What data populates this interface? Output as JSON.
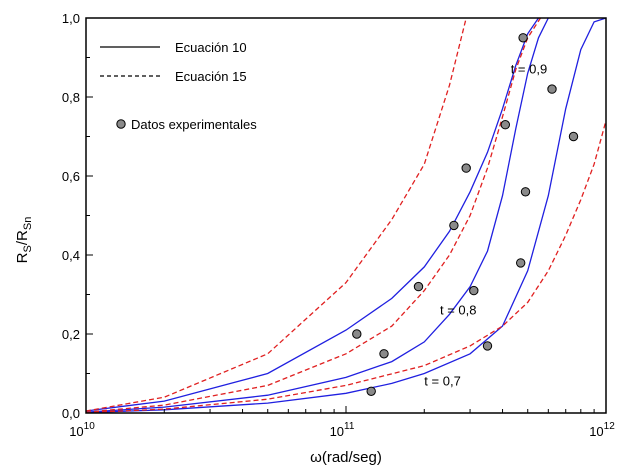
{
  "chart_data": {
    "type": "line",
    "title": "",
    "xlabel": "ω(rad/seg)",
    "ylabel": {
      "base": "R",
      "sub1": "S",
      "mid": "/R",
      "sub2": "Sn"
    },
    "x_scale": "log",
    "xlim": [
      10000000000,
      1000000000000
    ],
    "ylim": [
      0,
      1
    ],
    "grid": false,
    "legend_position": "top-left",
    "x_ticks": [
      {
        "value": 10000000000,
        "base": "10",
        "exp": "10"
      },
      {
        "value": 100000000000,
        "base": "10",
        "exp": "11"
      },
      {
        "value": 1000000000000,
        "base": "10",
        "exp": "12"
      }
    ],
    "y_ticks": [
      {
        "value": 0,
        "label": "0,0"
      },
      {
        "value": 0.2,
        "label": "0,2"
      },
      {
        "value": 0.4,
        "label": "0,4"
      },
      {
        "value": 0.6,
        "label": "0,6"
      },
      {
        "value": 0.8,
        "label": "0,8"
      },
      {
        "value": 1.0,
        "label": "1,0"
      }
    ],
    "legend": [
      {
        "label": "Ecuación 10",
        "style": "solid",
        "color": "#000000"
      },
      {
        "label": "Ecuación 15",
        "style": "dashed",
        "color": "#000000"
      },
      {
        "label": "Datos experimentales",
        "style": "marker",
        "color": "#808080"
      }
    ],
    "curve_labels": [
      {
        "text": "t = 0,9",
        "x": 430000000000,
        "y": 0.86
      },
      {
        "text": "t = 0,8",
        "x": 230000000000,
        "y": 0.25
      },
      {
        "text": "t = 0,7",
        "x": 200000000000,
        "y": 0.07
      }
    ],
    "series": [
      {
        "name": "",
        "group": "t = 0,9",
        "style": "solid",
        "color": "#2020e0",
        "points": [
          [
            10000000000,
            0.005
          ],
          [
            20000000000,
            0.03
          ],
          [
            50000000000,
            0.1
          ],
          [
            100000000000,
            0.21
          ],
          [
            150000000000,
            0.29
          ],
          [
            200000000000,
            0.37
          ],
          [
            250000000000,
            0.46
          ],
          [
            300000000000,
            0.56
          ],
          [
            350000000000,
            0.66
          ],
          [
            400000000000,
            0.77
          ],
          [
            450000000000,
            0.88
          ],
          [
            500000000000,
            0.96
          ],
          [
            550000000000,
            1.0
          ]
        ]
      },
      {
        "name": "",
        "group": "t = 0,9",
        "style": "dashed",
        "color": "#e02020",
        "points": [
          [
            10000000000,
            0.005
          ],
          [
            20000000000,
            0.04
          ],
          [
            50000000000,
            0.15
          ],
          [
            100000000000,
            0.33
          ],
          [
            150000000000,
            0.49
          ],
          [
            200000000000,
            0.63
          ],
          [
            250000000000,
            0.83
          ],
          [
            290000000000,
            1.0
          ]
        ]
      },
      {
        "name": "",
        "group": "t = 0,8",
        "style": "solid",
        "color": "#2020e0",
        "points": [
          [
            10000000000,
            0.002
          ],
          [
            20000000000,
            0.015
          ],
          [
            50000000000,
            0.045
          ],
          [
            100000000000,
            0.09
          ],
          [
            150000000000,
            0.13
          ],
          [
            200000000000,
            0.18
          ],
          [
            250000000000,
            0.25
          ],
          [
            300000000000,
            0.32
          ],
          [
            350000000000,
            0.41
          ],
          [
            400000000000,
            0.55
          ],
          [
            450000000000,
            0.72
          ],
          [
            500000000000,
            0.86
          ],
          [
            550000000000,
            0.95
          ],
          [
            600000000000,
            1.0
          ]
        ]
      },
      {
        "name": "",
        "group": "t = 0,8",
        "style": "dashed",
        "color": "#e02020",
        "points": [
          [
            10000000000,
            0.002
          ],
          [
            20000000000,
            0.02
          ],
          [
            50000000000,
            0.07
          ],
          [
            100000000000,
            0.15
          ],
          [
            150000000000,
            0.22
          ],
          [
            200000000000,
            0.31
          ],
          [
            250000000000,
            0.4
          ],
          [
            300000000000,
            0.5
          ],
          [
            350000000000,
            0.62
          ],
          [
            400000000000,
            0.75
          ],
          [
            450000000000,
            0.87
          ],
          [
            500000000000,
            0.95
          ],
          [
            560000000000,
            1.0
          ]
        ]
      },
      {
        "name": "",
        "group": "t = 0,7",
        "style": "solid",
        "color": "#2020e0",
        "points": [
          [
            10000000000,
            0.001
          ],
          [
            20000000000,
            0.008
          ],
          [
            50000000000,
            0.025
          ],
          [
            100000000000,
            0.05
          ],
          [
            150000000000,
            0.075
          ],
          [
            200000000000,
            0.1
          ],
          [
            300000000000,
            0.15
          ],
          [
            400000000000,
            0.22
          ],
          [
            500000000000,
            0.36
          ],
          [
            600000000000,
            0.55
          ],
          [
            700000000000,
            0.77
          ],
          [
            800000000000,
            0.92
          ],
          [
            900000000000,
            0.99
          ],
          [
            1000000000000,
            1.0
          ]
        ]
      },
      {
        "name": "",
        "group": "t = 0,7",
        "style": "dashed",
        "color": "#e02020",
        "points": [
          [
            10000000000,
            0.001
          ],
          [
            20000000000,
            0.01
          ],
          [
            50000000000,
            0.035
          ],
          [
            100000000000,
            0.07
          ],
          [
            200000000000,
            0.12
          ],
          [
            300000000000,
            0.17
          ],
          [
            400000000000,
            0.22
          ],
          [
            500000000000,
            0.28
          ],
          [
            600000000000,
            0.36
          ],
          [
            700000000000,
            0.45
          ],
          [
            800000000000,
            0.54
          ],
          [
            900000000000,
            0.63
          ],
          [
            1000000000000,
            0.74
          ]
        ]
      }
    ],
    "experimental_points": [
      [
        110000000000,
        0.2
      ],
      [
        125000000000,
        0.055
      ],
      [
        140000000000,
        0.15
      ],
      [
        190000000000,
        0.32
      ],
      [
        260000000000,
        0.475
      ],
      [
        290000000000,
        0.62
      ],
      [
        310000000000,
        0.31
      ],
      [
        350000000000,
        0.17
      ],
      [
        410000000000,
        0.73
      ],
      [
        470000000000,
        0.38
      ],
      [
        480000000000,
        0.95
      ],
      [
        490000000000,
        0.56
      ],
      [
        620000000000,
        0.82
      ],
      [
        750000000000,
        0.7
      ]
    ]
  }
}
